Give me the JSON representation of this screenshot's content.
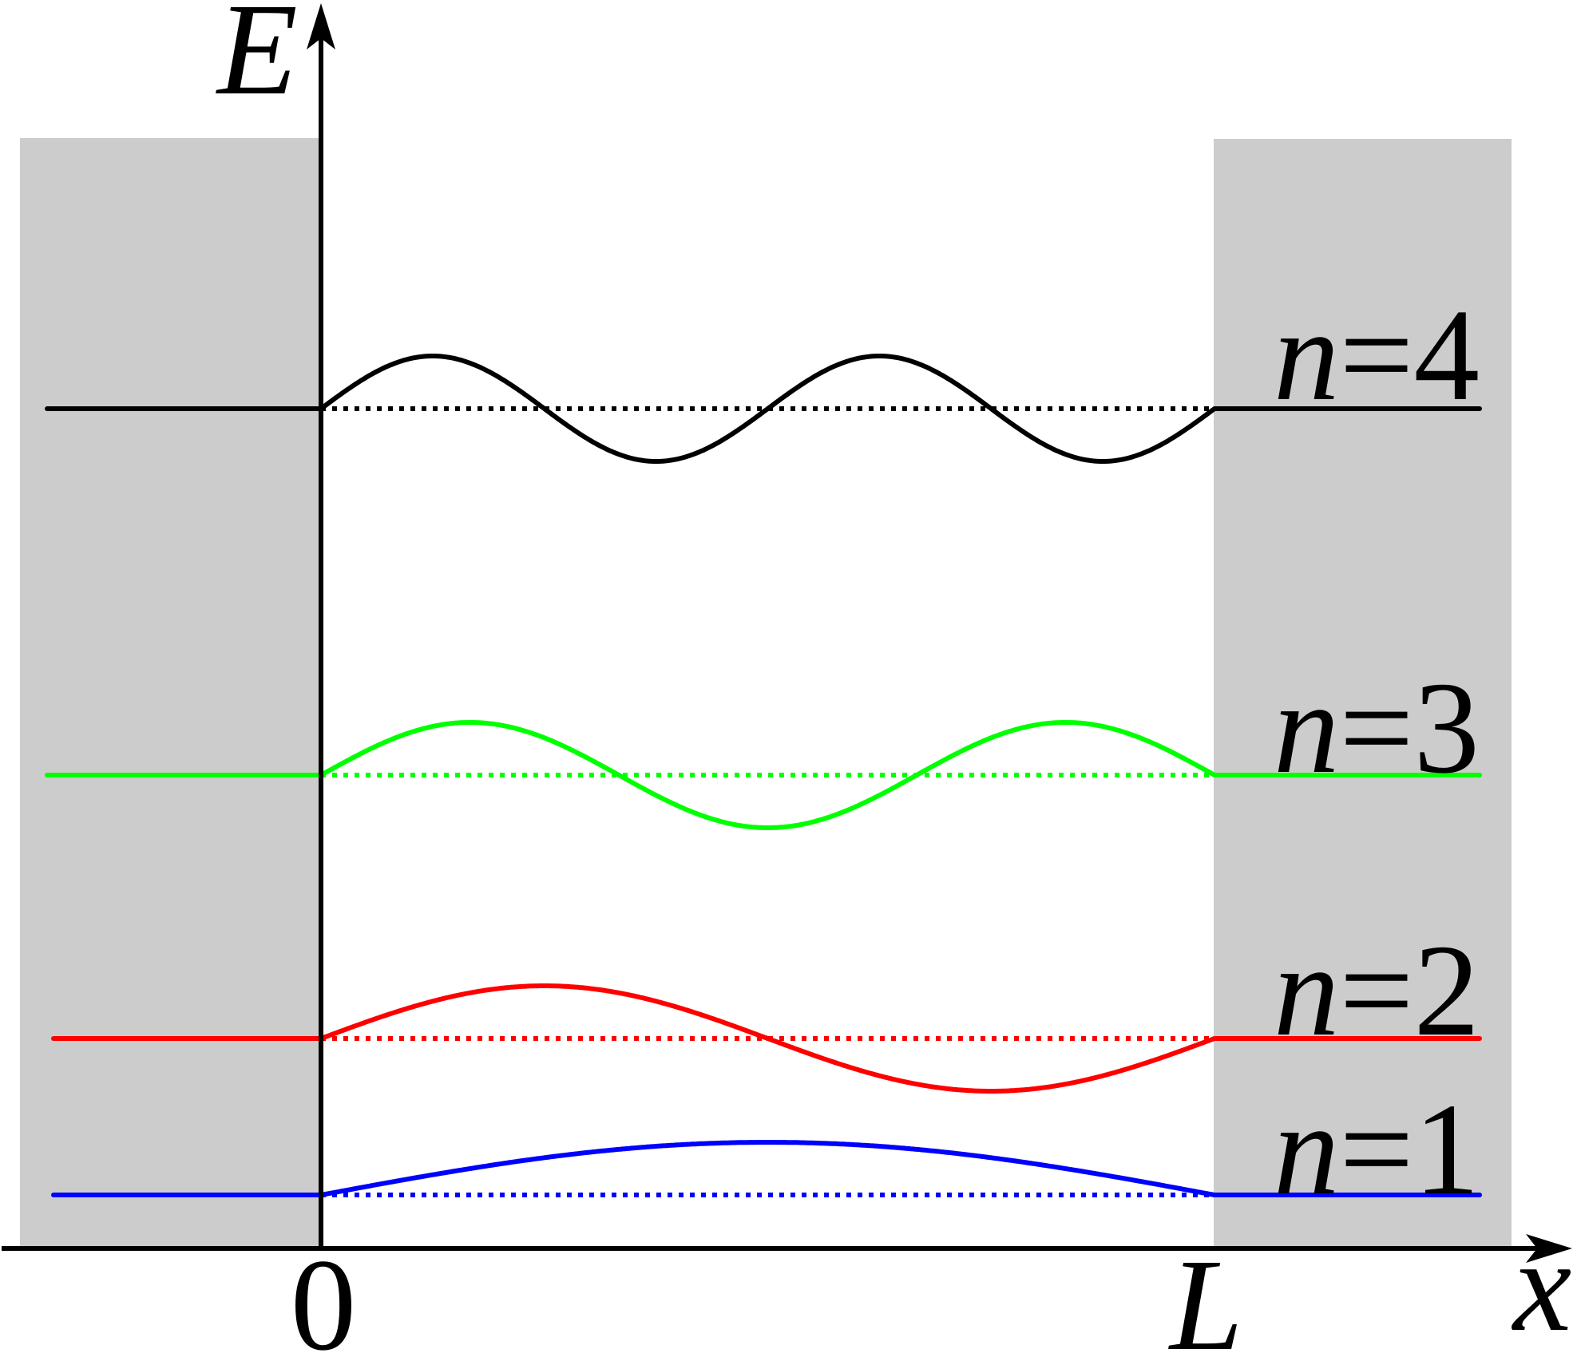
{
  "axes": {
    "y_label": "E",
    "x_label": "x",
    "origin_label": "0",
    "box_end_label": "L"
  },
  "colors": {
    "wall": "#cccccc",
    "axis": "#000000"
  },
  "levels": [
    {
      "n": 1,
      "var": "n",
      "eq": "=1",
      "color": "#0000ff"
    },
    {
      "n": 2,
      "var": "n",
      "eq": "=2",
      "color": "#ff0000"
    },
    {
      "n": 3,
      "var": "n",
      "eq": "=3",
      "color": "#00ff00"
    },
    {
      "n": 4,
      "var": "n",
      "eq": "=4",
      "color": "#000000"
    }
  ]
}
